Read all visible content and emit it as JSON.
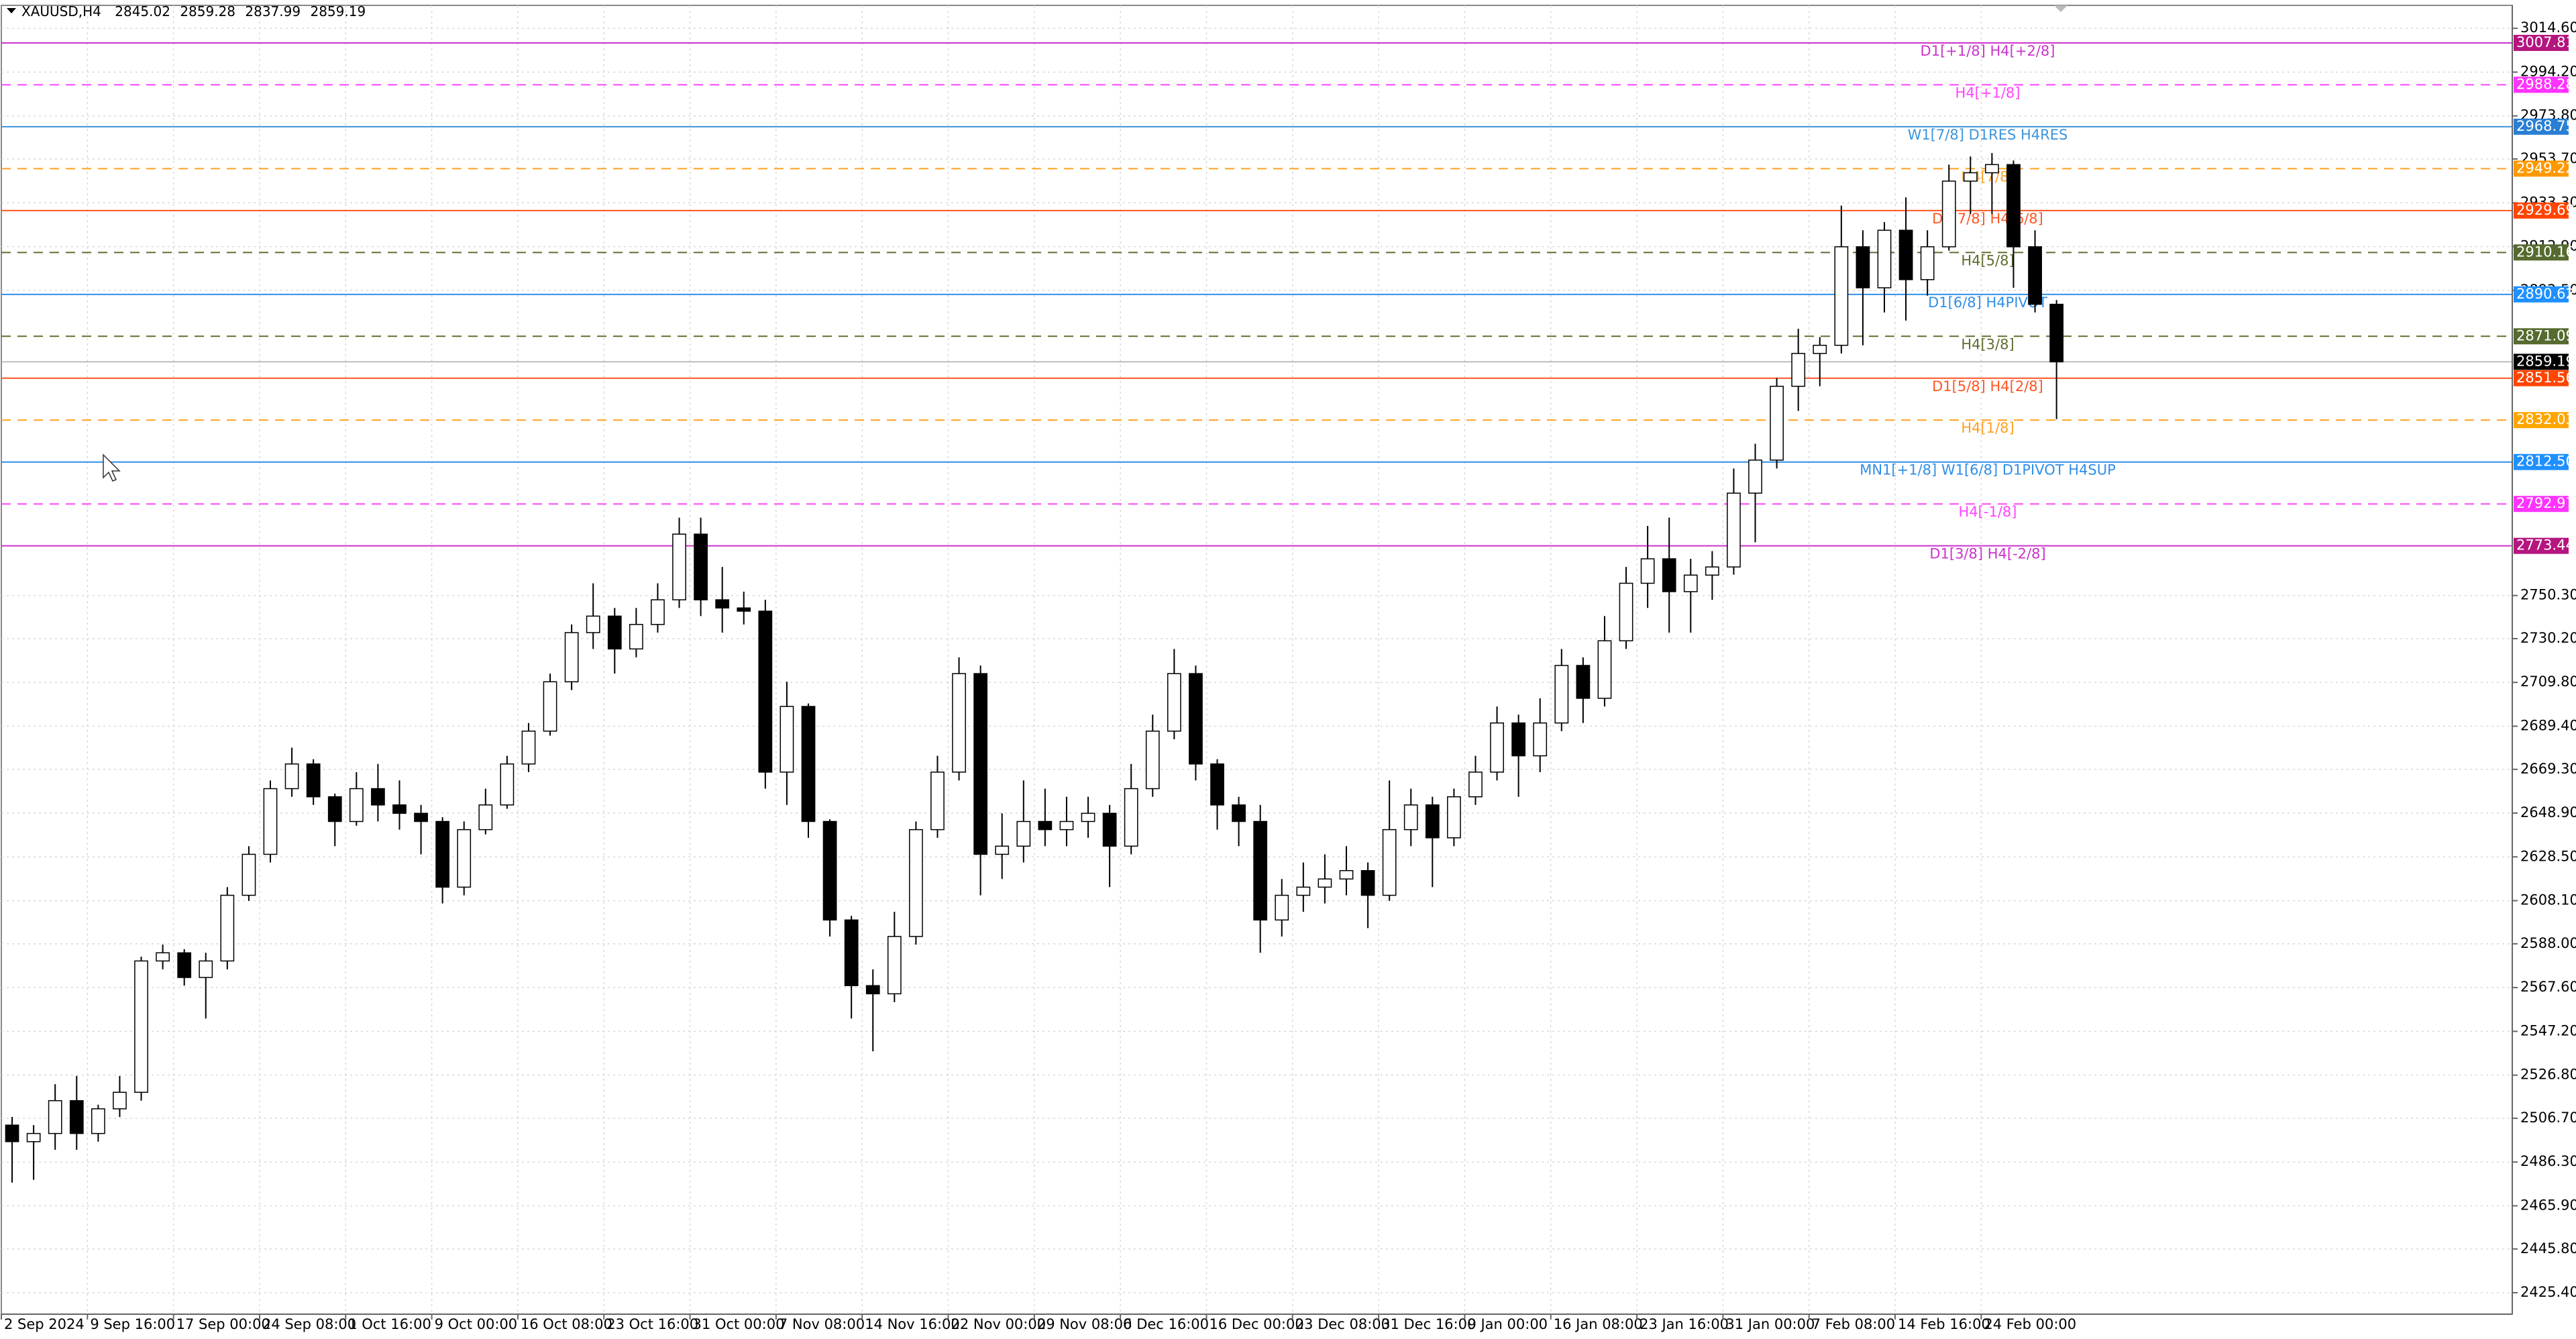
{
  "chart_data": {
    "type": "candlestick",
    "symbol": "XAUUSD,H4",
    "header_ohlc": [
      2845.02,
      2859.28,
      2837.99,
      2859.19
    ],
    "categories": [
      "2 Sep 2024",
      null,
      null,
      null,
      "9 Sep 16:00",
      null,
      null,
      null,
      "17 Sep 00:00",
      null,
      null,
      null,
      "24 Sep 08:00",
      null,
      null,
      null,
      "1 Oct 16:00",
      null,
      null,
      null,
      "9 Oct 00:00",
      null,
      null,
      null,
      "16 Oct 08:00",
      null,
      null,
      null,
      "23 Oct 16:00",
      null,
      null,
      null,
      "31 Oct 00:00",
      null,
      null,
      null,
      "7 Nov 08:00",
      null,
      null,
      null,
      "14 Nov 16:00",
      null,
      null,
      null,
      "22 Nov 00:00",
      null,
      null,
      null,
      "29 Nov 08:00",
      null,
      null,
      null,
      "6 Dec 16:00",
      null,
      null,
      null,
      "16 Dec 00:00",
      null,
      null,
      null,
      "23 Dec 08:00",
      null,
      null,
      null,
      "31 Dec 16:00",
      null,
      null,
      null,
      "9 Jan 00:00",
      null,
      null,
      null,
      "16 Jan 08:00",
      null,
      null,
      null,
      "23 Jan 16:00",
      null,
      null,
      null,
      "31 Jan 00:00",
      null,
      null,
      null,
      "7 Feb 08:00",
      null,
      null,
      null,
      "14 Feb 16:00",
      null,
      null,
      null,
      "24 Feb 00:00",
      null,
      null,
      null
    ],
    "open": [
      2503.5,
      2495.8,
      2499.6,
      2514.9,
      2499.6,
      2511.1,
      2518.8,
      2580.0,
      2583.8,
      2572.3,
      2580.0,
      2610.6,
      2629.7,
      2660.3,
      2671.8,
      2656.5,
      2645.0,
      2660.3,
      2652.7,
      2648.8,
      2645.0,
      2614.4,
      2641.2,
      2652.7,
      2671.8,
      2687.1,
      2710.1,
      2733.0,
      2740.7,
      2725.4,
      2736.8,
      2748.3,
      2778.9,
      2748.3,
      2744.5,
      2743.0,
      2668.0,
      2698.6,
      2645.0,
      2599.1,
      2568.5,
      2564.7,
      2591.4,
      2641.2,
      2668.0,
      2713.9,
      2629.7,
      2633.5,
      2645.0,
      2641.2,
      2645.0,
      2648.8,
      2633.5,
      2660.3,
      2687.1,
      2713.9,
      2671.8,
      2652.7,
      2645.0,
      2599.1,
      2610.6,
      2614.4,
      2618.2,
      2622.1,
      2610.6,
      2641.2,
      2652.7,
      2637.4,
      2656.5,
      2668.0,
      2690.9,
      2675.6,
      2690.9,
      2717.7,
      2702.4,
      2729.2,
      2756.0,
      2767.4,
      2752.1,
      2759.8,
      2763.6,
      2798.0,
      2813.4,
      2847.8,
      2863.1,
      2866.9,
      2912.8,
      2893.7,
      2920.5,
      2897.5,
      2912.8,
      2943.4,
      2947.3,
      2951.1,
      2912.8,
      2886.0
    ],
    "high": [
      2507.3,
      2503.5,
      2522.6,
      2526.4,
      2513.0,
      2526.4,
      2582.0,
      2587.6,
      2585.5,
      2583.8,
      2614.4,
      2633.5,
      2664.1,
      2679.4,
      2674.0,
      2658.0,
      2668.0,
      2671.8,
      2664.1,
      2652.7,
      2647.0,
      2645.0,
      2660.3,
      2675.6,
      2690.9,
      2713.9,
      2736.8,
      2756.0,
      2744.5,
      2744.5,
      2756.0,
      2786.6,
      2786.6,
      2763.6,
      2752.1,
      2748.3,
      2710.1,
      2700.0,
      2646.0,
      2601.0,
      2576.1,
      2602.9,
      2645.0,
      2675.6,
      2721.5,
      2717.7,
      2648.8,
      2664.1,
      2660.3,
      2656.5,
      2656.5,
      2652.7,
      2671.8,
      2694.8,
      2725.4,
      2717.7,
      2674.0,
      2656.5,
      2652.7,
      2618.2,
      2625.9,
      2629.7,
      2633.5,
      2625.9,
      2664.1,
      2660.3,
      2656.5,
      2660.3,
      2675.6,
      2698.6,
      2694.8,
      2702.4,
      2725.4,
      2721.5,
      2740.7,
      2763.6,
      2782.7,
      2786.6,
      2767.4,
      2771.0,
      2809.5,
      2821.0,
      2851.6,
      2874.6,
      2870.7,
      2932.0,
      2920.5,
      2924.3,
      2935.8,
      2920.5,
      2951.1,
      2954.9,
      2956.5,
      2953.0,
      2920.5,
      2888.0
    ],
    "low": [
      2476.7,
      2478.0,
      2492.0,
      2492.0,
      2495.8,
      2507.3,
      2514.9,
      2576.1,
      2568.5,
      2553.2,
      2576.1,
      2608.0,
      2625.9,
      2656.5,
      2652.7,
      2633.5,
      2643.0,
      2645.0,
      2641.2,
      2629.7,
      2606.8,
      2610.6,
      2639.0,
      2650.9,
      2668.0,
      2685.0,
      2706.2,
      2725.4,
      2713.9,
      2721.5,
      2733.0,
      2744.5,
      2740.7,
      2733.0,
      2736.8,
      2660.3,
      2652.7,
      2637.4,
      2591.4,
      2553.2,
      2537.9,
      2560.8,
      2587.6,
      2637.4,
      2664.1,
      2610.6,
      2618.2,
      2625.9,
      2633.5,
      2633.5,
      2637.4,
      2614.4,
      2629.7,
      2656.5,
      2683.3,
      2664.1,
      2641.2,
      2633.5,
      2583.8,
      2591.4,
      2602.9,
      2606.8,
      2610.6,
      2595.3,
      2608.0,
      2633.5,
      2614.4,
      2633.5,
      2652.7,
      2664.1,
      2656.5,
      2668.0,
      2687.1,
      2690.9,
      2698.6,
      2725.4,
      2744.5,
      2733.0,
      2733.0,
      2748.3,
      2760.0,
      2775.1,
      2809.5,
      2836.3,
      2847.8,
      2863.1,
      2866.9,
      2882.2,
      2878.4,
      2890.0,
      2911.0,
      2928.1,
      2928.1,
      2893.7,
      2882.2,
      2832.5
    ],
    "close": [
      2495.8,
      2499.6,
      2514.9,
      2499.6,
      2511.1,
      2518.8,
      2580.0,
      2583.8,
      2572.3,
      2580.0,
      2610.6,
      2629.7,
      2660.3,
      2671.8,
      2656.5,
      2645.0,
      2660.3,
      2652.7,
      2648.8,
      2645.0,
      2614.4,
      2641.2,
      2652.7,
      2671.8,
      2687.1,
      2710.1,
      2733.0,
      2740.7,
      2725.4,
      2736.8,
      2748.3,
      2778.9,
      2748.3,
      2744.5,
      2743.0,
      2668.0,
      2698.6,
      2645.0,
      2599.1,
      2568.5,
      2564.7,
      2591.4,
      2641.2,
      2668.0,
      2713.9,
      2629.7,
      2633.5,
      2645.0,
      2641.2,
      2645.0,
      2648.8,
      2633.5,
      2660.3,
      2687.1,
      2713.9,
      2671.8,
      2652.7,
      2645.0,
      2599.1,
      2610.6,
      2614.4,
      2618.2,
      2622.1,
      2610.6,
      2641.2,
      2652.7,
      2637.4,
      2656.5,
      2668.0,
      2690.9,
      2675.6,
      2690.9,
      2717.7,
      2702.4,
      2729.2,
      2756.0,
      2767.4,
      2752.1,
      2759.8,
      2763.6,
      2798.0,
      2813.4,
      2847.8,
      2863.1,
      2866.9,
      2912.8,
      2893.7,
      2920.5,
      2897.5,
      2912.8,
      2943.4,
      2947.3,
      2951.1,
      2912.8,
      2886.0,
      2859.19
    ],
    "up_color": "#ffffff",
    "down_color": "#000000",
    "ylim": [
      2415.4,
      3025.3
    ],
    "yticks": [
      {
        "value": 3014.6,
        "label": "3014.60"
      },
      {
        "value": 2994.2,
        "label": "2994.20"
      },
      {
        "value": 2973.8,
        "label": "2973.80"
      },
      {
        "value": 2953.7,
        "label": "2953.70"
      },
      {
        "value": 2933.3,
        "label": "2933.30"
      },
      {
        "value": 2912.9,
        "label": "2912.90"
      },
      {
        "value": 2892.5,
        "label": "2892.50"
      },
      {
        "value": 2750.3,
        "label": "2750.30"
      },
      {
        "value": 2730.2,
        "label": "2730.20"
      },
      {
        "value": 2709.8,
        "label": "2709.80"
      },
      {
        "value": 2689.4,
        "label": "2689.40"
      },
      {
        "value": 2669.3,
        "label": "2669.30"
      },
      {
        "value": 2648.9,
        "label": "2648.90"
      },
      {
        "value": 2628.5,
        "label": "2628.50"
      },
      {
        "value": 2608.1,
        "label": "2608.10"
      },
      {
        "value": 2588.0,
        "label": "2588.00"
      },
      {
        "value": 2567.6,
        "label": "2567.60"
      },
      {
        "value": 2547.2,
        "label": "2547.20"
      },
      {
        "value": 2526.8,
        "label": "2526.80"
      },
      {
        "value": 2506.7,
        "label": "2506.70"
      },
      {
        "value": 2486.3,
        "label": "2486.30"
      },
      {
        "value": 2465.9,
        "label": "2465.90"
      },
      {
        "value": 2445.8,
        "label": "2445.80"
      },
      {
        "value": 2425.4,
        "label": "2425.40"
      }
    ],
    "grid": true,
    "last_price": 2859.19,
    "levels": [
      {
        "price": 3007.81,
        "label": "D1[+1/8] H4[+2/8]",
        "color": "#cc33cc",
        "box_color": "#b5157f",
        "dashed": false
      },
      {
        "price": 2988.28,
        "label": "H4[+1/8]",
        "color": "#ff44ff",
        "box_color": "#ff33ff",
        "dashed": true
      },
      {
        "price": 2968.75,
        "label": "W1[7/8] D1RES H4RES",
        "color": "#3b94dc",
        "box_color": "#2a7fd4",
        "dashed": false
      },
      {
        "price": 2949.22,
        "label": "H4[7/8]",
        "color": "#ffa020",
        "box_color": "#ff9900",
        "dashed": true
      },
      {
        "price": 2929.69,
        "label": "D1[7/8] H4[6/8]",
        "color": "#ff5522",
        "box_color": "#ff4500",
        "dashed": false
      },
      {
        "price": 2910.16,
        "label": "H4[5/8]",
        "color": "#5f6e2e",
        "box_color": "#556b2f",
        "dashed": true
      },
      {
        "price": 2890.62,
        "label": "D1[6/8] H4PIVOT",
        "color": "#2f8fe8",
        "box_color": "#1e90ff",
        "dashed": false
      },
      {
        "price": 2871.09,
        "label": "H4[3/8]",
        "color": "#5f6e2e",
        "box_color": "#556b2f",
        "dashed": true
      },
      {
        "price": 2851.56,
        "label": "D1[5/8] H4[2/8]",
        "color": "#ff5522",
        "box_color": "#ff4500",
        "dashed": false
      },
      {
        "price": 2832.03,
        "label": "H4[1/8]",
        "color": "#ffa020",
        "box_color": "#ffa500",
        "dashed": true
      },
      {
        "price": 2812.5,
        "price_label": "2812.50",
        "label": "MN1[+1/8] W1[6/8] D1PIVOT H4SUP",
        "color": "#2f8fe8",
        "box_color": "#1e90ff",
        "dashed": false
      },
      {
        "price": 2792.97,
        "label": "H4[-1/8]",
        "color": "#ff44ff",
        "box_color": "#ff33ff",
        "dashed": true
      },
      {
        "price": 2773.44,
        "label": "D1[3/8] H4[-2/8]",
        "color": "#cc33cc",
        "box_color": "#b5157f",
        "dashed": false
      }
    ]
  }
}
